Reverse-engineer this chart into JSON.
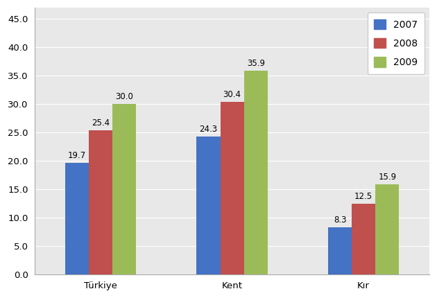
{
  "categories": [
    "Türkiye",
    "Kent",
    "Kır"
  ],
  "series": {
    "2007": [
      19.7,
      24.3,
      8.3
    ],
    "2008": [
      25.4,
      30.4,
      12.5
    ],
    "2009": [
      30.0,
      35.9,
      15.9
    ]
  },
  "colors": {
    "2007": "#4472C4",
    "2008": "#C0504D",
    "2009": "#9BBB59"
  },
  "ylim": [
    0,
    47
  ],
  "yticks": [
    0.0,
    5.0,
    10.0,
    15.0,
    20.0,
    25.0,
    30.0,
    35.0,
    40.0,
    45.0
  ],
  "bar_width": 0.18,
  "label_fontsize": 8.5,
  "tick_fontsize": 9.5,
  "legend_fontsize": 10,
  "plot_bg_color": "#E8E8E8",
  "fig_bg_color": "#FFFFFF",
  "grid_color": "#FFFFFF"
}
